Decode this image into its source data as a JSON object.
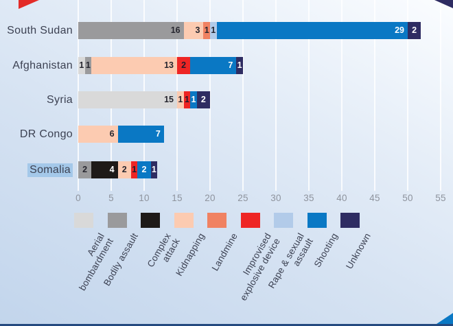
{
  "chart_data": {
    "type": "bar",
    "orientation": "horizontal",
    "stacked": true,
    "title": "",
    "xlabel": "",
    "ylabel": "",
    "xlim": [
      0,
      55
    ],
    "x_ticks": [
      0,
      5,
      10,
      15,
      20,
      25,
      30,
      35,
      40,
      45,
      50,
      55
    ],
    "grid": true,
    "legend_position": "bottom",
    "categories": [
      "South Sudan",
      "Afghanistan",
      "Syria",
      "DR Congo",
      "Somalia"
    ],
    "highlighted_category": "Somalia",
    "series": [
      {
        "name": "Aerial bombardment",
        "color": "#d9d9d9",
        "value_text_color": "#26262f",
        "values": [
          0,
          1,
          15,
          0,
          0
        ]
      },
      {
        "name": "Bodily assault",
        "color": "#9a9a9c",
        "value_text_color": "#26262f",
        "values": [
          16,
          1,
          0,
          0,
          2
        ]
      },
      {
        "name": "Complex attack",
        "color": "#1e1a18",
        "value_text_color": "#ffffff",
        "values": [
          0,
          0,
          0,
          0,
          4
        ]
      },
      {
        "name": "Kidnapping",
        "color": "#fccbb1",
        "value_text_color": "#26262f",
        "values": [
          3,
          13,
          1,
          6,
          2
        ]
      },
      {
        "name": "Landmine",
        "color": "#f08262",
        "value_text_color": "#26262f",
        "values": [
          1,
          0,
          0,
          0,
          0
        ]
      },
      {
        "name": "Improvised explosive device",
        "color": "#ee2524",
        "value_text_color": "#1f1b2d",
        "values": [
          0,
          2,
          1,
          0,
          1
        ]
      },
      {
        "name": "Rape & sexual assault",
        "color": "#b2cbe9",
        "value_text_color": "#26262f",
        "values": [
          1,
          0,
          0,
          0,
          0
        ]
      },
      {
        "name": "Shooting",
        "color": "#0a78c4",
        "value_text_color": "#ffffff",
        "values": [
          29,
          7,
          1,
          7,
          2
        ]
      },
      {
        "name": "Unknown",
        "color": "#2e2c62",
        "value_text_color": "#ffffff",
        "values": [
          2,
          1,
          2,
          0,
          1
        ]
      }
    ],
    "totals": [
      52,
      25,
      20,
      13,
      12
    ]
  },
  "axis": {
    "tick_labels": [
      "0",
      "5",
      "10",
      "15",
      "20",
      "25",
      "30",
      "35",
      "40",
      "45",
      "50",
      "55"
    ]
  },
  "legend": {
    "items": [
      {
        "label": "Aerial bombardment",
        "display": "Aerial\nbombardment",
        "color": "#d9d9d9"
      },
      {
        "label": "Bodily assault",
        "display": "Bodily assault",
        "color": "#9a9a9c"
      },
      {
        "label": "Complex attack",
        "display": "Complex\nattack",
        "color": "#1e1a18"
      },
      {
        "label": "Kidnapping",
        "display": "Kidnapping",
        "color": "#fccbb1"
      },
      {
        "label": "Landmine",
        "display": "Landmine",
        "color": "#f08262"
      },
      {
        "label": "Improvised explosive device",
        "display": "Improvised\nexplosive device",
        "color": "#ee2524"
      },
      {
        "label": "Rape & sexual assault",
        "display": "Rape & sexual\nassault",
        "color": "#b2cbe9"
      },
      {
        "label": "Shooting",
        "display": "Shooting",
        "color": "#0a78c4"
      },
      {
        "label": "Unknown",
        "display": "Unknown",
        "color": "#2e2c62"
      }
    ]
  },
  "decorations": {
    "gridline_color": "#ffffff",
    "country_label_color": "#3c4152",
    "tick_label_color": "#8e939d",
    "somalia_highlight_color": "#a4c8e9",
    "bottom_edge_bar_color": "#24497f",
    "corner_triangles": {
      "top_left": "#e32b28",
      "top_right": "#2e2c62",
      "bottom_right": "#0a78c4"
    }
  }
}
